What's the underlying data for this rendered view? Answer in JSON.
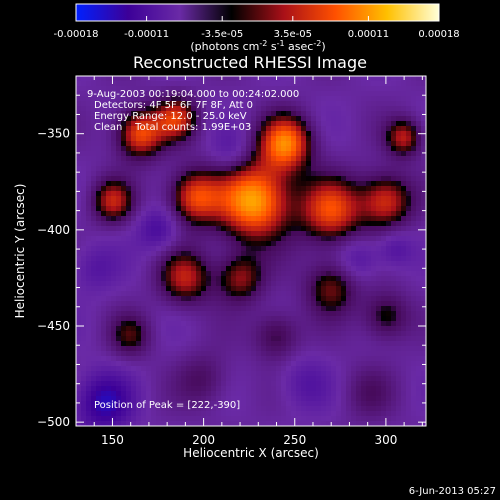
{
  "chart_data": {
    "type": "heatmap",
    "title": "Reconstructed RHESSI Image",
    "xlabel": "Heliocentric X (arcsec)",
    "ylabel": "Heliocentric Y (arcsec)",
    "xlim": [
      130,
      322
    ],
    "ylim": [
      -502,
      -320
    ],
    "x_ticks": [
      150,
      200,
      250,
      300
    ],
    "y_ticks": [
      -350,
      -400,
      -450,
      -500
    ],
    "colorbar": {
      "range": [
        -0.00018,
        0.00018
      ],
      "tick_values": [
        -0.00018,
        -0.00011,
        -3.5e-05,
        3.5e-05,
        0.00011,
        0.00018
      ],
      "tick_labels": [
        "-0.00018",
        "-0.00011",
        "-3.5e-05",
        "3.5e-05",
        "0.00011",
        "0.00018"
      ],
      "unit_prefix": "(photons cm",
      "unit_sup1": "-2",
      "unit_mid": " s",
      "unit_sup2": "-1",
      "unit_suffix": " asec",
      "unit_sup3": "-2",
      "unit_end": ")",
      "colors": [
        "#0020ff",
        "#3c0098",
        "#6a2aa6",
        "#000000",
        "#a81018",
        "#ff5000",
        "#ffc000",
        "#ffffd8"
      ]
    },
    "annotations": [
      "9-Aug-2003 00:19:04.000 to 00:24:02.000",
      "Detectors: 4F 5F 6F 7F 8F, Att 0",
      "Energy Range: 12.0 - 25.0 keV",
      "Clean    Total counts: 1.99E+03"
    ],
    "peak_label": "Position of Peak = [222,-390]",
    "peak": [
      222,
      -390
    ],
    "sources": [
      {
        "x": 228,
        "y": -385,
        "amp": 1.0,
        "s": 14
      },
      {
        "x": 245,
        "y": -355,
        "amp": 0.85,
        "s": 10
      },
      {
        "x": 270,
        "y": -390,
        "amp": 0.7,
        "s": 12
      },
      {
        "x": 300,
        "y": -385,
        "amp": 0.65,
        "s": 10
      },
      {
        "x": 195,
        "y": -383,
        "amp": 0.7,
        "s": 10
      },
      {
        "x": 165,
        "y": -350,
        "amp": 0.75,
        "s": 9
      },
      {
        "x": 185,
        "y": -342,
        "amp": 0.6,
        "s": 8
      },
      {
        "x": 150,
        "y": -385,
        "amp": 0.55,
        "s": 8
      },
      {
        "x": 190,
        "y": -425,
        "amp": 0.55,
        "s": 10
      },
      {
        "x": 220,
        "y": -425,
        "amp": 0.5,
        "s": 9
      },
      {
        "x": 270,
        "y": -430,
        "amp": 0.45,
        "s": 10
      },
      {
        "x": 300,
        "y": -445,
        "amp": 0.4,
        "s": 9
      },
      {
        "x": 310,
        "y": -352,
        "amp": 0.55,
        "s": 7
      },
      {
        "x": 160,
        "y": -455,
        "amp": 0.35,
        "s": 8
      },
      {
        "x": 240,
        "y": -455,
        "amp": 0.35,
        "s": 9
      },
      {
        "x": 200,
        "y": -478,
        "amp": 0.25,
        "s": 10
      },
      {
        "x": 290,
        "y": -485,
        "amp": 0.2,
        "s": 10
      },
      {
        "x": 145,
        "y": -490,
        "amp": -0.45,
        "s": 11
      },
      {
        "x": 175,
        "y": -400,
        "amp": -0.3,
        "s": 8
      },
      {
        "x": 285,
        "y": -415,
        "amp": -0.25,
        "s": 8
      },
      {
        "x": 305,
        "y": -410,
        "amp": -0.25,
        "s": 7
      },
      {
        "x": 215,
        "y": -360,
        "amp": -0.2,
        "s": 8
      },
      {
        "x": 140,
        "y": -420,
        "amp": -0.2,
        "s": 9
      },
      {
        "x": 255,
        "y": -480,
        "amp": -0.2,
        "s": 10
      }
    ],
    "grid": false,
    "legend": "colorbar-top"
  },
  "footer": {
    "date": "6-Jun-2013 05:27"
  }
}
